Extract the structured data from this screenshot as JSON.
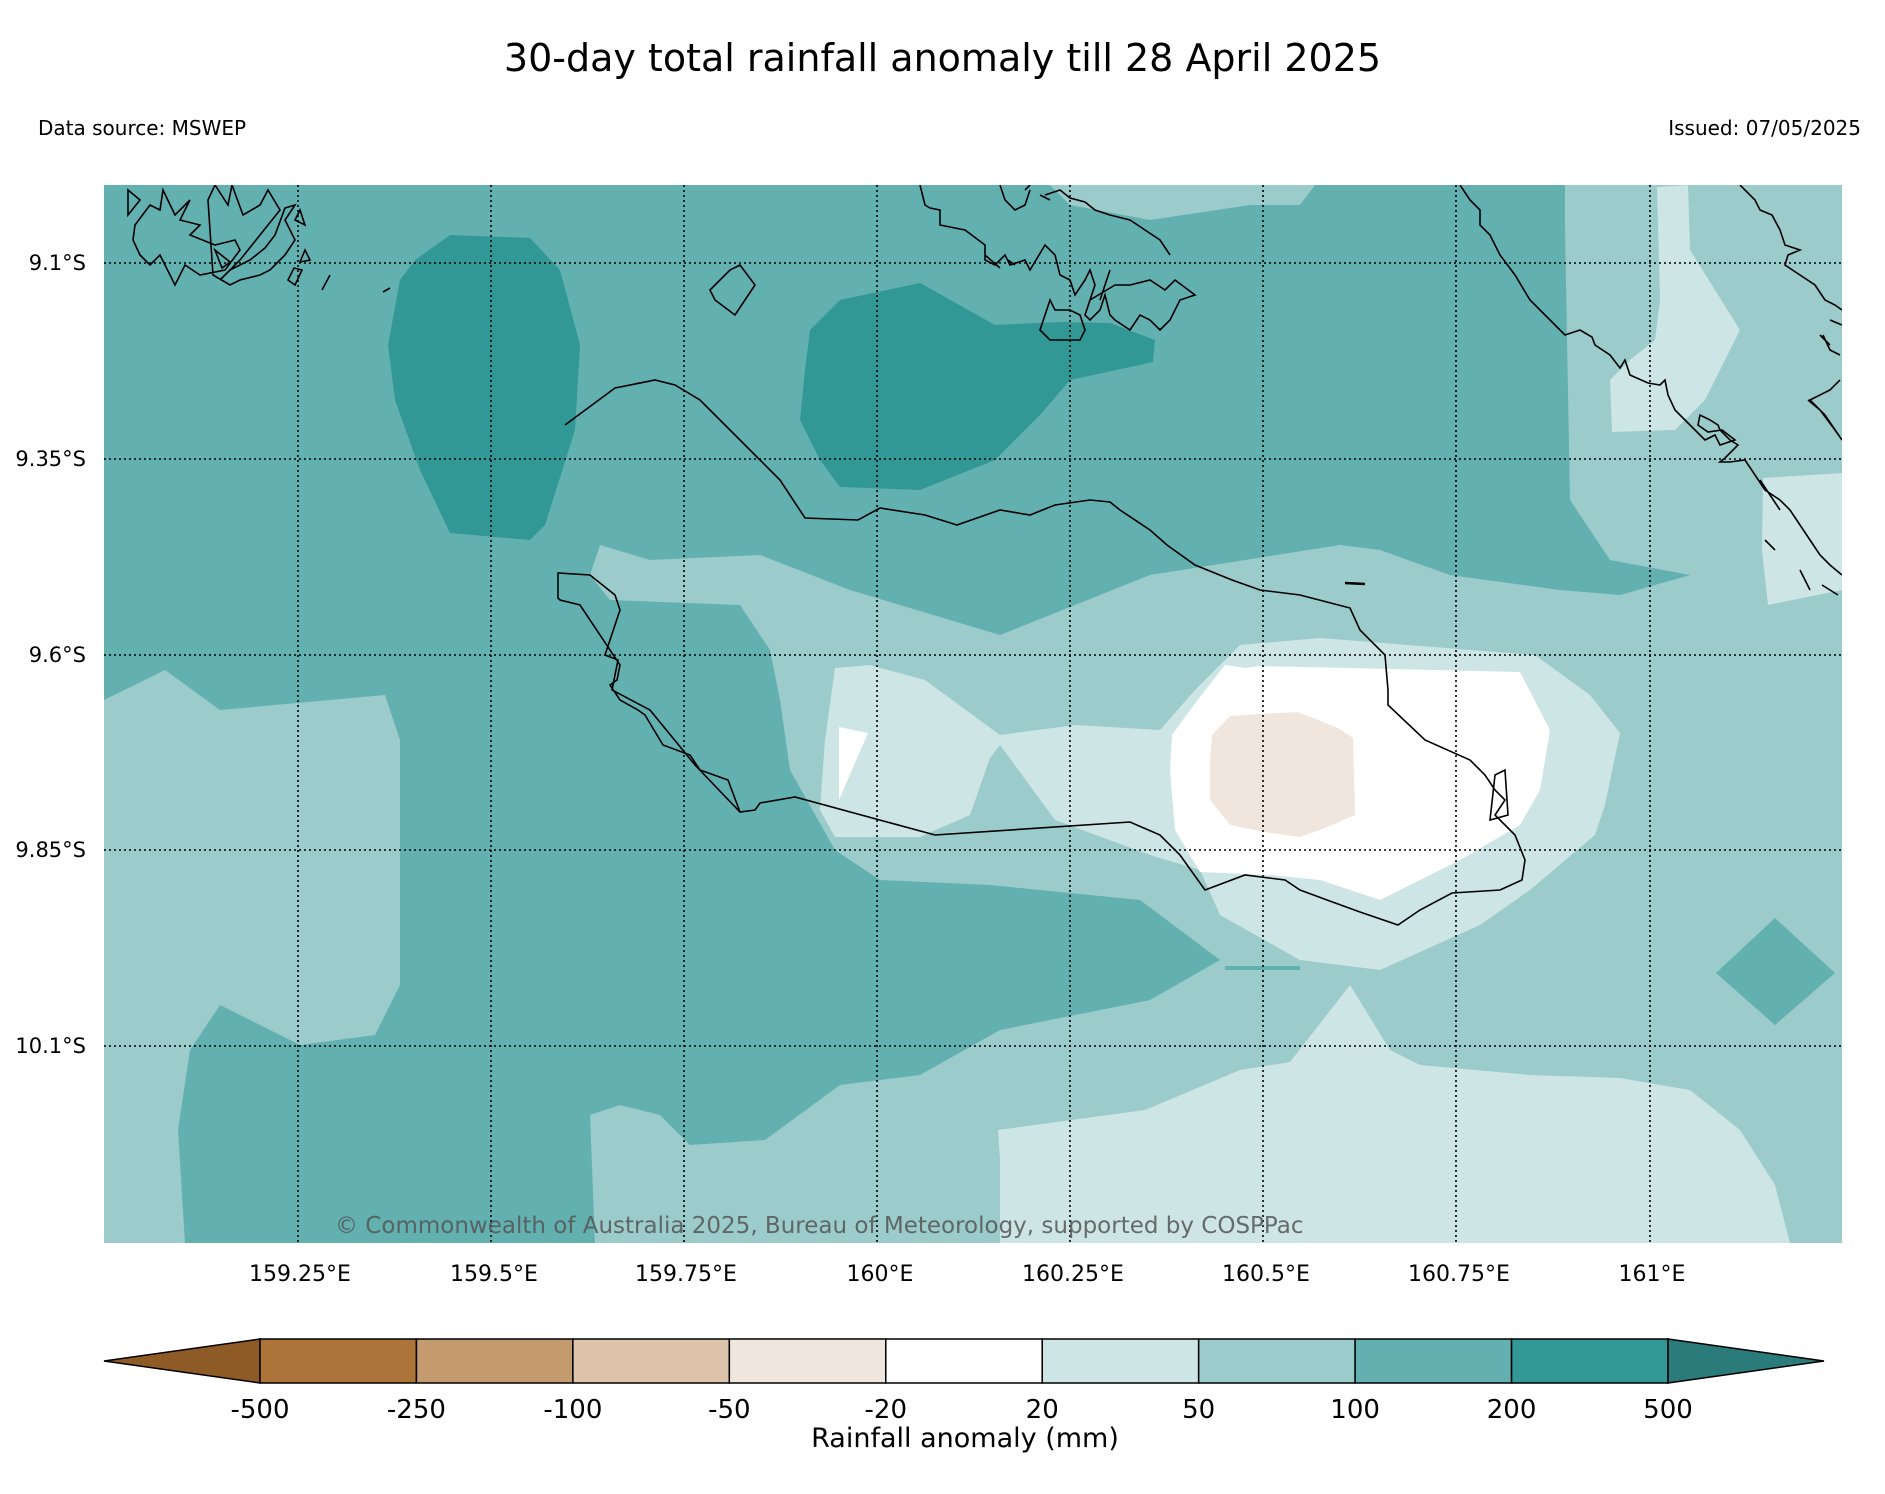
{
  "title": "30-day total rainfall anomaly till 28 April 2025",
  "data_source": "Data source: MSWEP",
  "issued": "Issued: 07/05/2025",
  "copyright": "© Commonwealth of Australia 2025, Bureau of Meteorology, supported by COSPPac",
  "map": {
    "lat_labels": [
      "9.1°S",
      "9.35°S",
      "9.6°S",
      "9.85°S",
      "10.1°S"
    ],
    "lon_labels": [
      "159.25°E",
      "159.5°E",
      "159.75°E",
      "160°E",
      "160.25°E",
      "160.5°E",
      "160.75°E",
      "161°E"
    ],
    "grid": "dotted"
  },
  "colorbar": {
    "title": "Rainfall anomaly (mm)",
    "tick_labels": [
      "-500",
      "-250",
      "-100",
      "-50",
      "-20",
      "20",
      "50",
      "100",
      "200",
      "500"
    ],
    "colors": [
      "#8e5a26",
      "#ad743a",
      "#c49a6f",
      "#dcc3aa",
      "#f0e6dd",
      "#ffffff",
      "#cde5e4",
      "#9bcbcb",
      "#63b0b0",
      "#319896",
      "#2a7b79"
    ],
    "extend": "both"
  },
  "colors": {
    "c20_50": "#cde5e4",
    "c50_100": "#9bcbcb",
    "c100_200": "#63b0b0",
    "c200_500": "#319896",
    "neutral": "#ffffff",
    "dry_50_20": "#f0e6dd"
  }
}
